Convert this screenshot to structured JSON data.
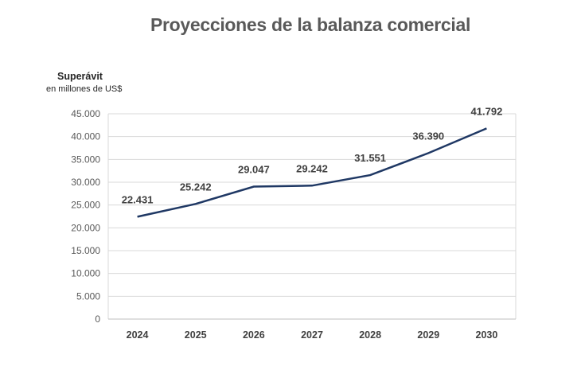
{
  "chart_data": {
    "type": "line",
    "title": "Proyecciones de la balanza comercial",
    "ylabel": "Superávit",
    "ylabel_sub": "en millones de US$",
    "xlabel": "",
    "categories": [
      "2024",
      "2025",
      "2026",
      "2027",
      "2028",
      "2029",
      "2030"
    ],
    "values": [
      22431,
      25242,
      29047,
      29242,
      31551,
      36390,
      41792
    ],
    "data_labels": [
      "22.431",
      "25.242",
      "29.047",
      "29.242",
      "31.551",
      "36.390",
      "41.792"
    ],
    "ylim": [
      0,
      45000
    ],
    "yticks": [
      0,
      5000,
      10000,
      15000,
      20000,
      25000,
      30000,
      35000,
      40000,
      45000
    ],
    "ytick_labels": [
      "0",
      "5.000",
      "10.000",
      "15.000",
      "20.000",
      "25.000",
      "30.000",
      "35.000",
      "40.000",
      "45.000"
    ],
    "grid": true,
    "line_color": "#1f3864"
  }
}
